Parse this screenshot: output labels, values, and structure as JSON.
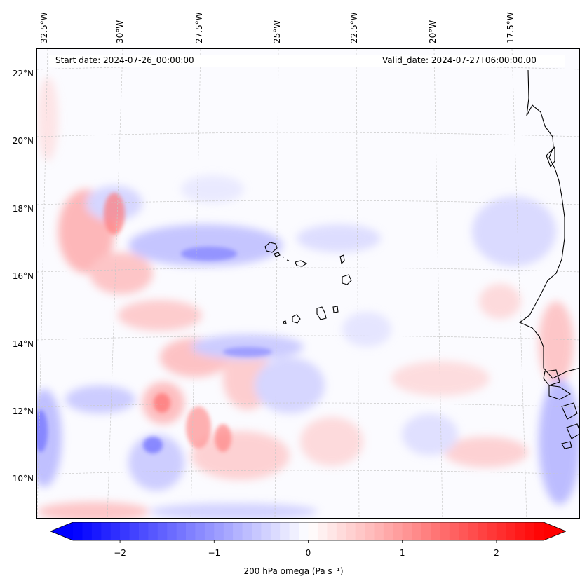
{
  "map": {
    "header": {
      "start_label": "Start date: 2024-07-26_00:00:00",
      "valid_label": "Valid_date: 2024-07-27T06:00:00.00"
    },
    "longitude_labels": [
      "32.5°W",
      "30°W",
      "27.5°W",
      "25°W",
      "22.5°W",
      "20°W",
      "17.5°W"
    ],
    "latitude_labels": [
      "22°N",
      "20°N",
      "18°N",
      "16°N",
      "14°N",
      "12°N",
      "10°N"
    ],
    "extent": {
      "lon_min": -32.8,
      "lon_max": -15.7,
      "lat_min": 8.9,
      "lat_max": 22.8
    },
    "colors": {
      "negative": "#0000ff",
      "zero": "#ffffff",
      "positive": "#ff0000",
      "coast": "#000000",
      "grid": "#c8c8c8"
    }
  },
  "colorbar": {
    "ticks": [
      "−2",
      "−1",
      "0",
      "1",
      "2"
    ],
    "tick_values": [
      -2,
      -1,
      0,
      1,
      2
    ],
    "range": [
      -2.5,
      2.5
    ],
    "label": "200 hPa omega (Pa s⁻¹)"
  }
}
